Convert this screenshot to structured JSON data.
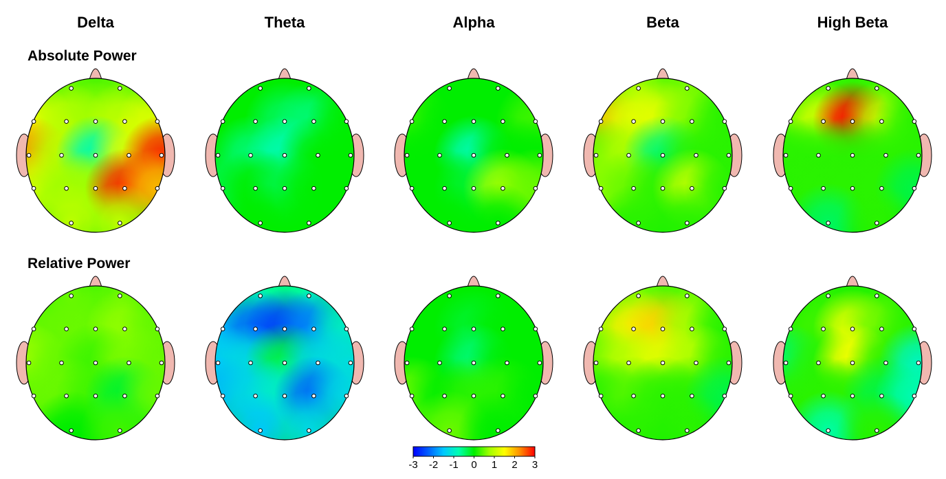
{
  "chart_data": {
    "type": "topomap",
    "bands": [
      "Delta",
      "Theta",
      "Alpha",
      "Beta",
      "High Beta"
    ],
    "row_labels": [
      "Absolute Power",
      "Relative Power"
    ],
    "maps": [
      [
        [
          0.5,
          0.5,
          1.5,
          1,
          0.8,
          1,
          1.3,
          2.2,
          1,
          -0.8,
          1.3,
          2.8,
          1.2,
          0.8,
          0.8,
          2.8,
          2,
          1,
          1
        ],
        [
          0,
          0,
          0,
          0,
          -0.4,
          -0.5,
          0,
          0,
          -0.5,
          -0.8,
          0,
          0,
          -0.3,
          0,
          -0.3,
          0,
          0,
          0,
          0
        ],
        [
          0,
          0,
          0.3,
          0,
          0,
          0,
          0.3,
          0,
          0,
          -0.8,
          0,
          0,
          0,
          0,
          -0.2,
          0.8,
          0.5,
          0,
          0
        ],
        [
          0.8,
          0.6,
          2,
          1.3,
          1.3,
          0.6,
          0.2,
          0.5,
          0.9,
          -0.5,
          0.2,
          0.2,
          0.7,
          0.5,
          0.2,
          1,
          0.2,
          0.2,
          0.2
        ],
        [
          0.3,
          0.3,
          0.5,
          1.2,
          3,
          1,
          0.2,
          0.2,
          0.2,
          0.2,
          0.2,
          0.2,
          0.2,
          0.2,
          0.2,
          0.2,
          -0.3,
          -0.4,
          0.2
        ]
      ],
      [
        [
          0.5,
          0.5,
          0.5,
          0.5,
          0.5,
          0.7,
          0.5,
          0.8,
          0.5,
          0.3,
          0.6,
          0.5,
          0.5,
          0.5,
          0.3,
          -0.2,
          0.5,
          0,
          0.3
        ],
        [
          -0.8,
          -0.8,
          -1.5,
          -2.2,
          -2.5,
          -2,
          -1,
          -1.5,
          -1.3,
          -0.3,
          -1.3,
          -1.2,
          -1.6,
          -1.3,
          -1,
          -2.2,
          -1.3,
          -1.5,
          -1.3
        ],
        [
          0,
          0,
          0,
          0,
          -0.2,
          0,
          0,
          0,
          0,
          -0.5,
          0,
          0,
          0.5,
          0,
          0.2,
          0.2,
          0,
          0.5,
          0
        ],
        [
          0.6,
          0.5,
          0.7,
          1.6,
          1.8,
          0.8,
          0.2,
          0.5,
          1,
          1.3,
          0.9,
          0.2,
          0.2,
          0.4,
          0.2,
          0.2,
          -0.3,
          0.2,
          0.2
        ],
        [
          0.2,
          0.2,
          0.2,
          0.3,
          1.3,
          0.5,
          0.2,
          -0.5,
          0.2,
          1.5,
          0.2,
          -0.9,
          0.2,
          0.2,
          0.2,
          -0.3,
          -0.8,
          -0.7,
          0.2
        ]
      ]
    ],
    "clim": [
      -3,
      3
    ],
    "cticks": [
      -3,
      -2,
      -1,
      0,
      1,
      2,
      3
    ],
    "colors": [
      "#0000ff",
      "#0060ff",
      "#00c8ff",
      "#00ffb0",
      "#00ee00",
      "#a0ff00",
      "#ffff00",
      "#ff9000",
      "#ff0000"
    ]
  }
}
